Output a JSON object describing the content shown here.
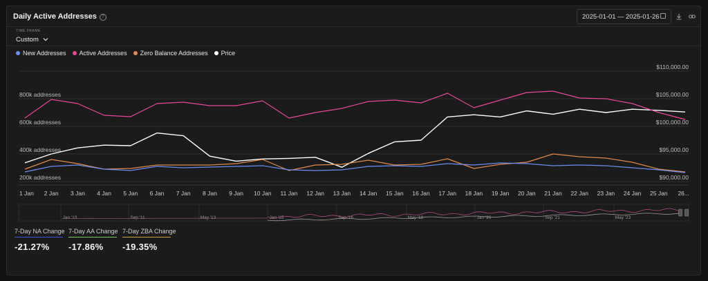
{
  "header": {
    "title": "Daily Active Addresses",
    "help_glyph": "?"
  },
  "date_range": {
    "start": "2025-01-01",
    "separator": "—",
    "end": "2025-01-26"
  },
  "time_frame": {
    "label": "TIME FRAME",
    "value": "Custom"
  },
  "colors": {
    "new": "#6c8ef2",
    "active": "#e8479b",
    "zero": "#e0894a",
    "price": "#ffffff",
    "zba_stat": "#c9a43e",
    "aa_stat": "#7cc95a",
    "na_stat": "#3f55d9"
  },
  "chart_data": {
    "type": "line",
    "categories": [
      "1 Jan",
      "2 Jan",
      "3 Jan",
      "4 Jan",
      "5 Jan",
      "6 Jan",
      "7 Jan",
      "8 Jan",
      "9 Jan",
      "10 Jan",
      "11 Jan",
      "12 Jan",
      "13 Jan",
      "14 Jan",
      "15 Jan",
      "16 Jan",
      "17 Jan",
      "18 Jan",
      "19 Jan",
      "20 Jan",
      "21 Jan",
      "22 Jan",
      "23 Jan",
      "24 Jan",
      "25 Jan",
      "26..."
    ],
    "left_axis": {
      "ticks": [
        200000,
        400000,
        600000,
        800000
      ],
      "tick_labels": [
        "200k addresses",
        "400k addresses",
        "600k addresses",
        "800k addresses"
      ],
      "range": [
        200000,
        800000
      ]
    },
    "right_axis": {
      "ticks": [
        90000,
        95000,
        100000,
        105000,
        110000
      ],
      "tick_labels": [
        "$90,000.00",
        "$95,000.00",
        "$100,000.00",
        "$105,000.00",
        "$110,000.00"
      ],
      "range": [
        90000,
        110000
      ]
    },
    "grid": true,
    "legend_position": "top-left",
    "series": [
      {
        "name": "New Addresses",
        "axis": "left",
        "color": "#6c8ef2",
        "values": [
          270000,
          310000,
          320000,
          290000,
          280000,
          310000,
          300000,
          305000,
          310000,
          315000,
          285000,
          280000,
          285000,
          310000,
          315000,
          310000,
          330000,
          320000,
          335000,
          330000,
          315000,
          320000,
          315000,
          300000,
          285000,
          265000
        ]
      },
      {
        "name": "Active Addresses",
        "axis": "left",
        "color": "#e8479b",
        "values": [
          660000,
          795000,
          765000,
          680000,
          670000,
          765000,
          775000,
          750000,
          750000,
          785000,
          660000,
          700000,
          730000,
          780000,
          790000,
          770000,
          840000,
          735000,
          790000,
          845000,
          855000,
          805000,
          800000,
          765000,
          700000,
          650000
        ]
      },
      {
        "name": "Zero Balance Addresses",
        "axis": "left",
        "color": "#e0894a",
        "values": [
          290000,
          360000,
          330000,
          290000,
          295000,
          320000,
          320000,
          320000,
          330000,
          360000,
          280000,
          320000,
          325000,
          355000,
          320000,
          325000,
          365000,
          295000,
          325000,
          340000,
          400000,
          380000,
          370000,
          340000,
          290000,
          270000
        ]
      },
      {
        "name": "Price",
        "axis": "right",
        "color": "#ffffff",
        "values": [
          93400,
          95000,
          96100,
          96600,
          96500,
          98800,
          98300,
          94600,
          93700,
          94100,
          94200,
          94400,
          92600,
          95100,
          97200,
          97500,
          101700,
          102100,
          101700,
          102800,
          102200,
          103100,
          102500,
          103100,
          102900,
          102600
        ]
      }
    ]
  },
  "navigator": {
    "labels": [
      "Jan '10",
      "Sep '11",
      "May '13",
      "Jan '15",
      "Sep '16",
      "May '18",
      "Jan '20",
      "Sep '21",
      "May '23"
    ]
  },
  "stats": [
    {
      "label": "7-Day NA Change",
      "value": "-21.27%"
    },
    {
      "label": "7-Day AA Change",
      "value": "-17.86%"
    },
    {
      "label": "7-Day ZBA Change",
      "value": "-19.35%"
    }
  ]
}
